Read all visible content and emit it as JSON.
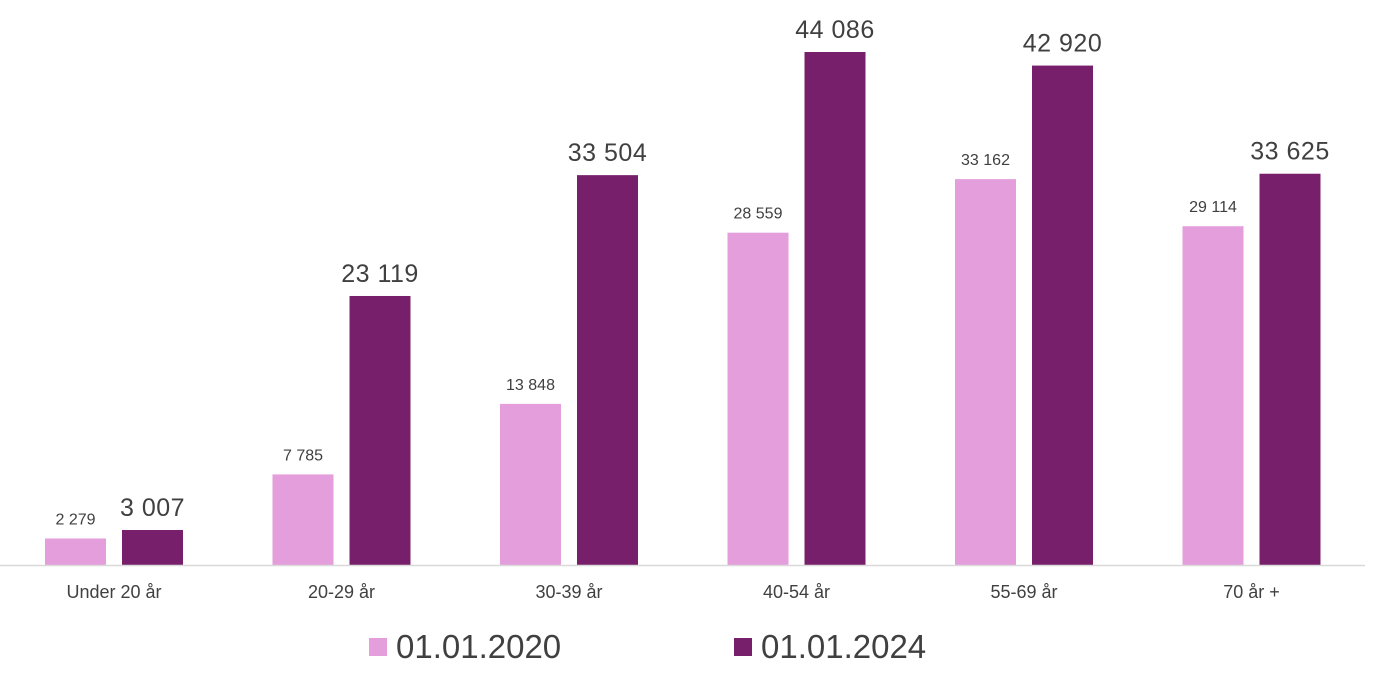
{
  "chart_data": {
    "type": "bar",
    "title": "",
    "xlabel": "",
    "ylabel": "",
    "ylim": [
      0,
      46000
    ],
    "grid": false,
    "legend_position": "bottom",
    "categories": [
      "Under 20 år",
      "20-29 år",
      "30-39 år",
      "40-54 år",
      "55-69 år",
      "70 år +"
    ],
    "series": [
      {
        "name": "01.01.2020",
        "color": "#e49edc",
        "values": [
          2279,
          7785,
          13848,
          28559,
          33162,
          29114
        ],
        "labels": [
          "2 279",
          "7 785",
          "13 848",
          "28 559",
          "33 162",
          "29 114"
        ]
      },
      {
        "name": "01.01.2024",
        "color": "#781f6b",
        "values": [
          3007,
          23119,
          33504,
          44086,
          42920,
          33625
        ],
        "labels": [
          "3 007",
          "23 119",
          "33 504",
          "44 086",
          "42 920",
          "33 625"
        ]
      }
    ],
    "axis_color": "#d9d9d9"
  }
}
